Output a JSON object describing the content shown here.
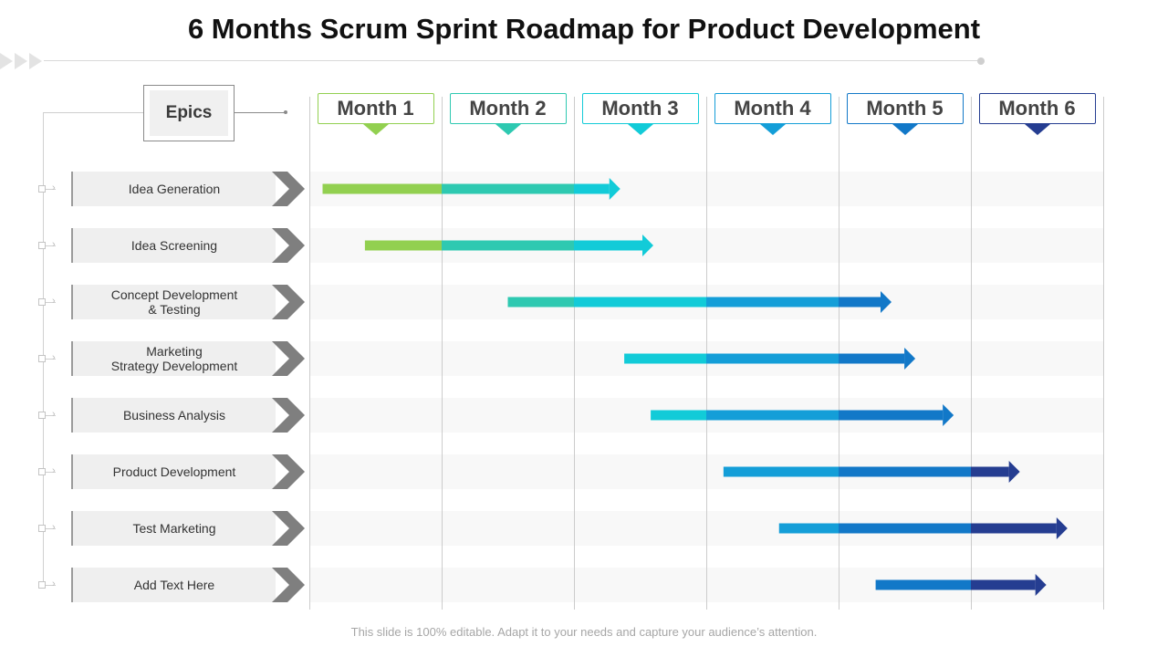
{
  "title": "6 Months Scrum Sprint Roadmap for Product Development",
  "epics_header": "Epics",
  "footer": "This slide is 100% editable. Adapt it to your needs and capture your audience’s attention.",
  "chart_data": {
    "type": "gantt",
    "months": [
      {
        "label": "Month 1",
        "color": "#92d050"
      },
      {
        "label": "Month 2",
        "color": "#2ec9b1"
      },
      {
        "label": "Month 3",
        "color": "#12cbd8"
      },
      {
        "label": "Month 4",
        "color": "#149ed8"
      },
      {
        "label": "Month 5",
        "color": "#1278c8"
      },
      {
        "label": "Month 6",
        "color": "#253d91"
      }
    ],
    "tasks": [
      {
        "label": "Idea Generation",
        "start": 0.1,
        "end": 2.35
      },
      {
        "label": "Idea Screening",
        "start": 0.42,
        "end": 2.6
      },
      {
        "label": "Concept Development\n& Testing",
        "start": 1.5,
        "end": 4.4
      },
      {
        "label": "Marketing\nStrategy Development",
        "start": 2.38,
        "end": 4.58
      },
      {
        "label": "Business Analysis",
        "start": 2.58,
        "end": 4.87
      },
      {
        "label": "Product Development",
        "start": 3.13,
        "end": 5.37
      },
      {
        "label": "Test Marketing",
        "start": 3.55,
        "end": 5.73
      },
      {
        "label": "Add Text Here",
        "start": 4.28,
        "end": 5.57
      }
    ]
  }
}
